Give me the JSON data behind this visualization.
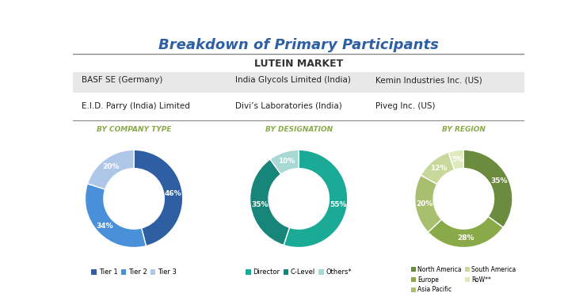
{
  "title": "Breakdown of Primary Participants",
  "subtitle": "LUTEIN MARKET",
  "table_rows": [
    [
      "BASF SE (Germany)",
      "India Glycols Limited (India)",
      "Kemin Industries Inc. (US)"
    ],
    [
      "E.I.D. Parry (India) Limited",
      "Divi’s Laboratories (India)",
      "Piveg Inc. (US)"
    ]
  ],
  "donut1": {
    "label": "BY COMPANY TYPE",
    "slices": [
      46,
      34,
      20
    ],
    "labels": [
      "46%",
      "34%",
      "20%"
    ],
    "colors": [
      "#2e5fa3",
      "#4a90d9",
      "#aec6e8"
    ],
    "legend": [
      "Tier 1",
      "Tier 2",
      "Tier 3"
    ]
  },
  "donut2": {
    "label": "BY DESIGNATION",
    "slices": [
      55,
      35,
      10
    ],
    "labels": [
      "55%",
      "35%",
      "10%"
    ],
    "colors": [
      "#1aaa96",
      "#17857a",
      "#a8d8d4"
    ],
    "legend": [
      "Director",
      "C-Level",
      "Others*"
    ]
  },
  "donut3": {
    "label": "BY REGION",
    "slices": [
      35,
      28,
      20,
      12,
      5
    ],
    "labels": [
      "35%",
      "28%",
      "20%",
      "12%",
      "5%"
    ],
    "colors": [
      "#6b8c3e",
      "#8aaa4a",
      "#a8bf6f",
      "#c8d89a",
      "#ddeabc"
    ],
    "legend": [
      "North America",
      "Europe",
      "Asia Pacific",
      "South America",
      "RoW**"
    ]
  },
  "title_color": "#2e5fa3",
  "subtitle_color": "#333333",
  "label_color": "#8aaa4a",
  "bg_color": "#ffffff",
  "table_bg_odd": "#e8e8e8",
  "table_bg_even": "#ffffff",
  "line_color": "#888888"
}
